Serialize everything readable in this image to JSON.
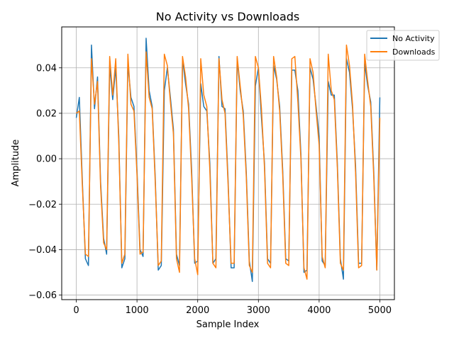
{
  "chart_data": {
    "type": "line",
    "title": "No Activity vs Downloads",
    "xlabel": "Sample Index",
    "ylabel": "Amplitude",
    "xlim": [
      -240,
      5240
    ],
    "ylim": [
      -0.062,
      0.058
    ],
    "xticks": [
      0,
      1000,
      2000,
      3000,
      4000,
      5000
    ],
    "xtick_labels": [
      "0",
      "1000",
      "2000",
      "3000",
      "4000",
      "5000"
    ],
    "yticks": [
      -0.06,
      -0.04,
      -0.02,
      0.0,
      0.02,
      0.04
    ],
    "ytick_labels": [
      "−0.06",
      "−0.04",
      "−0.02",
      "0.00",
      "0.02",
      "0.04"
    ],
    "grid": true,
    "legend_position": "top-right",
    "sample_step": 50,
    "series": [
      {
        "name": "No Activity",
        "color": "#1f77b4",
        "values": [
          0.018,
          0.027,
          -0.01,
          -0.044,
          -0.047,
          0.05,
          0.022,
          0.036,
          -0.01,
          -0.035,
          -0.042,
          0.041,
          0.026,
          0.04,
          0.01,
          -0.048,
          -0.044,
          0.042,
          0.027,
          0.023,
          -0.005,
          -0.04,
          -0.043,
          0.053,
          0.03,
          0.023,
          -0.008,
          -0.049,
          -0.047,
          0.03,
          0.04,
          0.027,
          0.013,
          -0.042,
          -0.047,
          0.044,
          0.033,
          0.024,
          -0.005,
          -0.046,
          -0.045,
          0.033,
          0.023,
          0.021,
          -0.002,
          -0.046,
          -0.044,
          0.045,
          0.023,
          0.022,
          -0.009,
          -0.048,
          -0.048,
          0.044,
          0.03,
          0.021,
          -0.006,
          -0.045,
          -0.054,
          0.032,
          0.04,
          0.018,
          -0.002,
          -0.044,
          -0.046,
          0.041,
          0.035,
          0.023,
          -0.005,
          -0.044,
          -0.045,
          0.039,
          0.039,
          0.03,
          0.002,
          -0.05,
          -0.049,
          0.04,
          0.035,
          0.023,
          0.01,
          -0.045,
          -0.047,
          0.034,
          0.028,
          0.028,
          -0.002,
          -0.044,
          -0.053,
          0.044,
          0.038,
          0.022,
          -0.003,
          -0.046,
          -0.046,
          0.042,
          0.032,
          0.025,
          -0.006,
          -0.049,
          0.027
        ]
      },
      {
        "name": "Downloads",
        "color": "#ff7f0e",
        "values": [
          0.02,
          0.021,
          -0.012,
          -0.042,
          -0.043,
          0.044,
          0.024,
          0.034,
          -0.012,
          -0.037,
          -0.04,
          0.045,
          0.028,
          0.044,
          0.007,
          -0.046,
          -0.042,
          0.046,
          0.024,
          0.021,
          -0.007,
          -0.042,
          -0.041,
          0.047,
          0.027,
          0.022,
          -0.01,
          -0.047,
          -0.045,
          0.046,
          0.041,
          0.025,
          0.011,
          -0.044,
          -0.05,
          0.045,
          0.036,
          0.022,
          -0.008,
          -0.044,
          -0.051,
          0.044,
          0.028,
          0.023,
          -0.005,
          -0.046,
          -0.048,
          0.044,
          0.026,
          0.02,
          -0.011,
          -0.046,
          -0.046,
          0.045,
          0.032,
          0.019,
          -0.008,
          -0.047,
          -0.05,
          0.045,
          0.04,
          0.022,
          -0.004,
          -0.046,
          -0.048,
          0.045,
          0.036,
          0.021,
          -0.007,
          -0.046,
          -0.047,
          0.044,
          0.045,
          0.025,
          0.0,
          -0.048,
          -0.053,
          0.044,
          0.038,
          0.021,
          0.006,
          -0.043,
          -0.048,
          0.046,
          0.03,
          0.026,
          -0.004,
          -0.046,
          -0.049,
          0.05,
          0.041,
          0.024,
          -0.006,
          -0.048,
          -0.047,
          0.046,
          0.034,
          0.023,
          -0.008,
          -0.049,
          0.018
        ]
      }
    ]
  }
}
